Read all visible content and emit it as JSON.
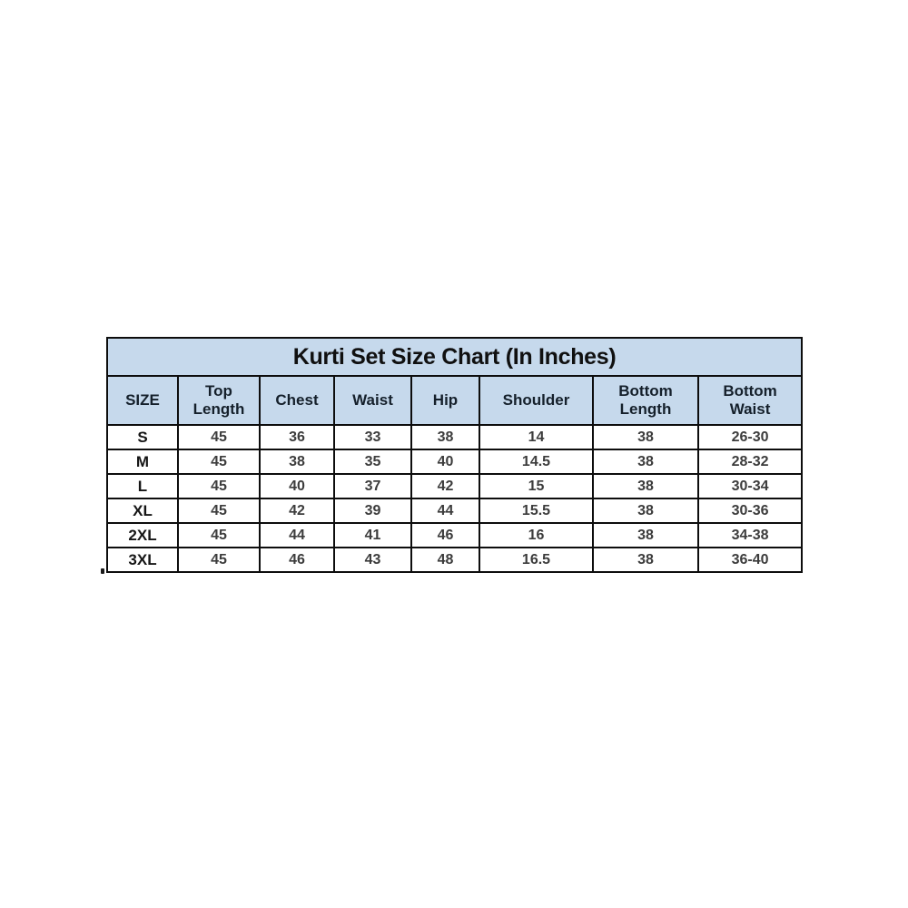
{
  "page": {
    "background": "#ffffff"
  },
  "colors": {
    "header_bg": "#c6d9ec",
    "border": "#0d0d0d",
    "title_text": "#101010",
    "header_text": "#15202b",
    "size_text": "#151515",
    "value_text": "#3c3c3c"
  },
  "chart_data": {
    "type": "table",
    "title": "Kurti Set Size Chart (In Inches)",
    "columns": [
      "SIZE",
      "Top Length",
      "Chest",
      "Waist",
      "Hip",
      "Shoulder",
      "Bottom Length",
      "Bottom Waist"
    ],
    "rows": [
      [
        "S",
        45,
        36,
        33,
        38,
        14,
        38,
        "26-30"
      ],
      [
        "M",
        45,
        38,
        35,
        40,
        14.5,
        38,
        "28-32"
      ],
      [
        "L",
        45,
        40,
        37,
        42,
        15,
        38,
        "30-34"
      ],
      [
        "XL",
        45,
        42,
        39,
        44,
        15.5,
        38,
        "30-36"
      ],
      [
        "2XL",
        45,
        44,
        41,
        46,
        16,
        38,
        "34-38"
      ],
      [
        "3XL",
        45,
        46,
        43,
        48,
        16.5,
        38,
        "36-40"
      ]
    ],
    "layout": {
      "header_background": "#c6d9ec",
      "grid": true,
      "all_cells_centered": true
    }
  }
}
